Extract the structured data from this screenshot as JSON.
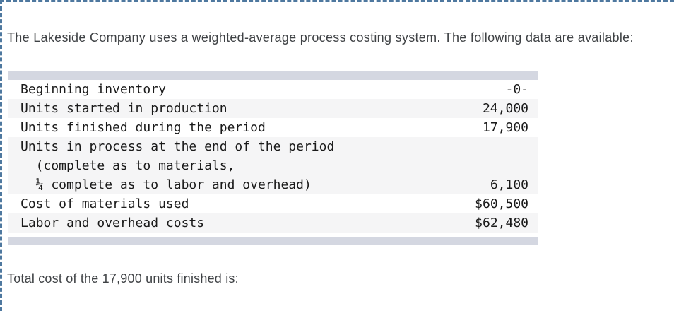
{
  "intro_text": "The Lakeside Company uses a weighted-average process costing system. The following data are available:",
  "table": {
    "lines": [
      {
        "label": "Beginning inventory",
        "value": "-0-"
      },
      {
        "label": "Units started in production",
        "value": "24,000"
      },
      {
        "label": "Units finished during the period",
        "value": "17,900"
      },
      {
        "label": "Units in process at the end of the period",
        "value": ""
      },
      {
        "label": "  (complete as to materials,",
        "value": ""
      },
      {
        "label": "  ¼ complete as to labor and overhead)",
        "value": "6,100"
      },
      {
        "label": "Cost of materials used",
        "value": "$60,500"
      },
      {
        "label": "Labor and overhead costs",
        "value": "$62,480"
      }
    ]
  },
  "prompt_text": "Total cost of the 17,900 units finished is:",
  "colors": {
    "dashed_border": "#4e789f",
    "table_strip": "#d4d7e1",
    "shaded_row": "#f5f5f6",
    "body_text": "#3f4245",
    "table_text": "#1a1a1a"
  }
}
